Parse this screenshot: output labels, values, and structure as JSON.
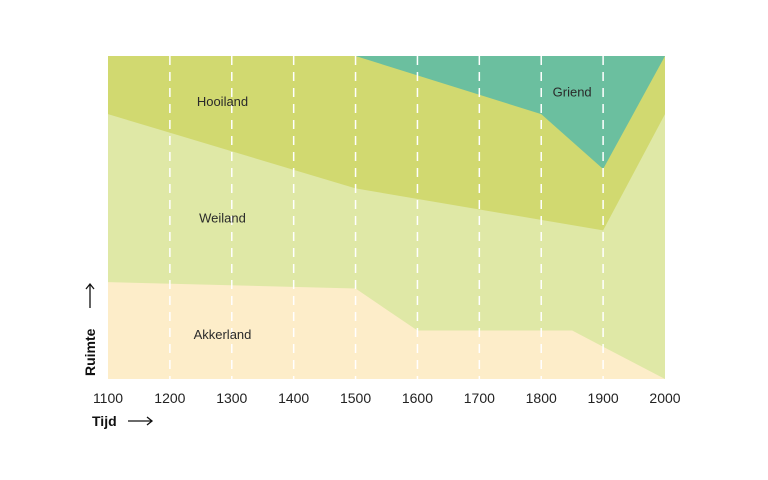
{
  "chart_data": {
    "type": "area",
    "xlabel": "Tijd",
    "ylabel": "Ruimte",
    "xlim": [
      1100,
      2000
    ],
    "ylim": [
      0,
      1
    ],
    "x_ticks": [
      1100,
      1200,
      1300,
      1400,
      1500,
      1600,
      1700,
      1800,
      1900,
      2000
    ],
    "grid": "vertical-dashed",
    "series": [
      {
        "name": "Akkerland",
        "color": "#fdedc9",
        "points": [
          [
            1100,
            0.3
          ],
          [
            1500,
            0.28
          ],
          [
            1600,
            0.15
          ],
          [
            1850,
            0.15
          ],
          [
            1900,
            0.1
          ],
          [
            2000,
            0.0
          ]
        ]
      },
      {
        "name": "Weiland",
        "color": "#dfe8a6",
        "points": [
          [
            1100,
            0.82
          ],
          [
            1500,
            0.59
          ],
          [
            1900,
            0.46
          ],
          [
            2000,
            0.82
          ]
        ]
      },
      {
        "name": "Hooiland",
        "color": "#d1d970",
        "points": [
          [
            1100,
            1.0
          ],
          [
            1500,
            1.0
          ],
          [
            1800,
            0.82
          ],
          [
            1900,
            0.65
          ],
          [
            2000,
            1.0
          ]
        ]
      },
      {
        "name": "Griend",
        "color": "#6bbf9f",
        "points": [
          [
            1100,
            1.0
          ],
          [
            2000,
            1.0
          ]
        ]
      }
    ],
    "labels": [
      {
        "text": "Hooiland",
        "x": 1285,
        "y": 0.86
      },
      {
        "text": "Weiland",
        "x": 1285,
        "y": 0.5
      },
      {
        "text": "Akkerland",
        "x": 1285,
        "y": 0.14
      },
      {
        "text": "Griend",
        "x": 1850,
        "y": 0.89
      }
    ]
  }
}
